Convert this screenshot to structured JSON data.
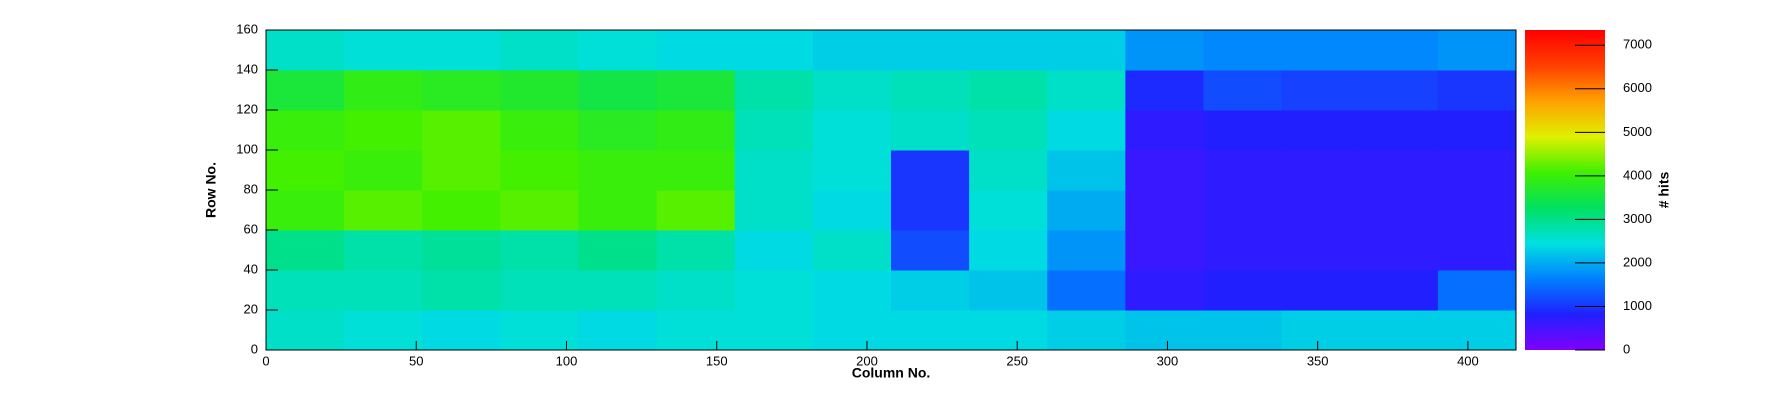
{
  "chart_data": {
    "type": "heatmap",
    "x_label": "Column No.",
    "y_label": "Row No.",
    "z_label": "# hits",
    "xbins": [
      0,
      26,
      52,
      78,
      104,
      130,
      156,
      182,
      208,
      234,
      260,
      286,
      312,
      338,
      364,
      390,
      416
    ],
    "ybins": [
      0,
      20,
      40,
      60,
      80,
      100,
      120,
      140,
      160
    ],
    "z": [
      [
        2600,
        2500,
        2400,
        2500,
        2400,
        2500,
        2500,
        2400,
        2400,
        2400,
        2300,
        2200,
        2200,
        2300,
        2300,
        2300
      ],
      [
        2700,
        2700,
        2800,
        2700,
        2700,
        2600,
        2500,
        2400,
        2300,
        2200,
        1500,
        700,
        800,
        800,
        800,
        1500
      ],
      [
        3000,
        2800,
        2900,
        2800,
        3000,
        2800,
        2400,
        2600,
        1200,
        2400,
        1800,
        600,
        700,
        700,
        700,
        700
      ],
      [
        4000,
        4200,
        4100,
        4200,
        4000,
        4200,
        2600,
        2400,
        1000,
        2500,
        2000,
        600,
        700,
        700,
        700,
        700
      ],
      [
        4100,
        4000,
        4200,
        4100,
        4000,
        4000,
        2600,
        2500,
        1000,
        2600,
        2200,
        600,
        700,
        700,
        700,
        700
      ],
      [
        4000,
        4100,
        4200,
        4000,
        3800,
        3900,
        2700,
        2500,
        2600,
        2700,
        2400,
        700,
        800,
        800,
        800,
        800
      ],
      [
        3600,
        3900,
        3800,
        3700,
        3500,
        3600,
        2800,
        2600,
        2700,
        2800,
        2600,
        900,
        1200,
        1100,
        1100,
        1000
      ],
      [
        2600,
        2500,
        2500,
        2600,
        2500,
        2400,
        2400,
        2300,
        2300,
        2300,
        2300,
        1800,
        1700,
        1700,
        1700,
        1800
      ]
    ],
    "xlim": [
      0,
      416
    ],
    "xticks": [
      0,
      50,
      100,
      150,
      200,
      250,
      300,
      350,
      400
    ],
    "ylim": [
      0,
      160
    ],
    "yticks": [
      0,
      20,
      40,
      60,
      80,
      100,
      120,
      140,
      160
    ],
    "zlim": [
      0,
      7350
    ],
    "zticks": [
      0,
      1000,
      2000,
      3000,
      4000,
      5000,
      6000,
      7000
    ],
    "colorscale": [
      "#8000ff",
      "#2020ff",
      "#0080ff",
      "#00e0e0",
      "#00e060",
      "#40f000",
      "#e0f000",
      "#ffa000",
      "#ff4000",
      "#ff0000"
    ]
  }
}
